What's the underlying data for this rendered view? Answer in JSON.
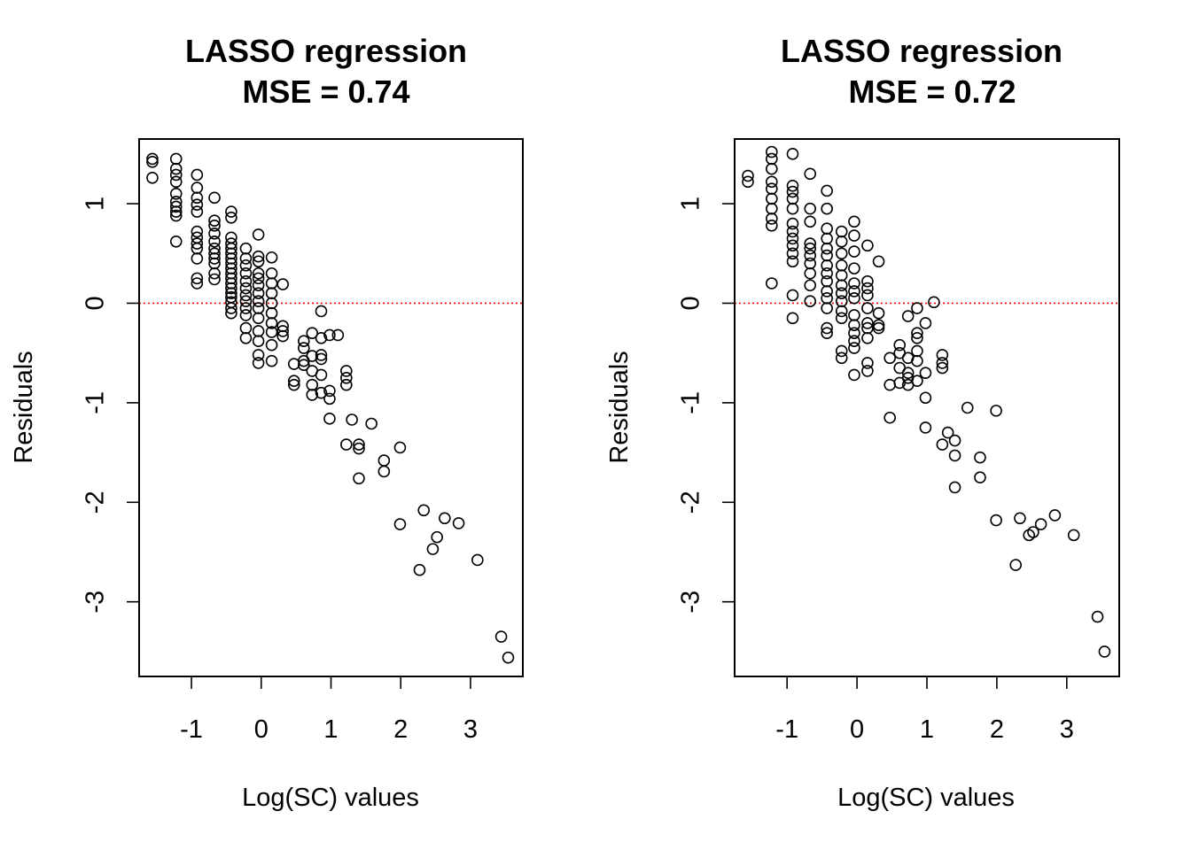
{
  "chart_data": [
    {
      "type": "scatter",
      "title": "LASSO regression",
      "subtitle": "MSE = 0.74",
      "xlabel": "Log(SC) values",
      "ylabel": "Residuals",
      "xlim": [
        -1.75,
        3.75
      ],
      "ylim": [
        -3.75,
        1.65
      ],
      "xticks": [
        -1,
        0,
        1,
        2,
        3
      ],
      "yticks": [
        -3,
        -2,
        -1,
        0,
        1
      ],
      "xtick_labels": [
        "-1",
        "0",
        "1",
        "2",
        "3"
      ],
      "ytick_labels": [
        "-3",
        "-2",
        "-1",
        "0",
        "1"
      ],
      "reference_line": {
        "y": 0,
        "style": "dotted",
        "color": "#ff0000"
      },
      "point_style": {
        "shape": "open-circle",
        "color": "#000000"
      },
      "grid": false,
      "legend": "none",
      "points": [
        [
          -1.56,
          1.45
        ],
        [
          -1.56,
          1.42
        ],
        [
          -1.56,
          1.26
        ],
        [
          -1.22,
          1.45
        ],
        [
          -1.22,
          1.35
        ],
        [
          -1.22,
          1.29
        ],
        [
          -1.22,
          1.22
        ],
        [
          -1.22,
          1.1
        ],
        [
          -1.22,
          1.02
        ],
        [
          -1.22,
          0.97
        ],
        [
          -1.22,
          0.92
        ],
        [
          -1.22,
          0.88
        ],
        [
          -1.22,
          0.62
        ],
        [
          -0.92,
          1.29
        ],
        [
          -0.92,
          1.16
        ],
        [
          -0.92,
          1.06
        ],
        [
          -0.92,
          0.99
        ],
        [
          -0.92,
          0.92
        ],
        [
          -0.92,
          0.72
        ],
        [
          -0.92,
          0.66
        ],
        [
          -0.92,
          0.6
        ],
        [
          -0.92,
          0.55
        ],
        [
          -0.92,
          0.45
        ],
        [
          -0.92,
          0.25
        ],
        [
          -0.92,
          0.2
        ],
        [
          -0.67,
          1.06
        ],
        [
          -0.67,
          0.83
        ],
        [
          -0.67,
          0.78
        ],
        [
          -0.67,
          0.7
        ],
        [
          -0.67,
          0.62
        ],
        [
          -0.67,
          0.55
        ],
        [
          -0.67,
          0.5
        ],
        [
          -0.67,
          0.45
        ],
        [
          -0.67,
          0.4
        ],
        [
          -0.67,
          0.3
        ],
        [
          -0.67,
          0.24
        ],
        [
          -0.43,
          0.92
        ],
        [
          -0.43,
          0.86
        ],
        [
          -0.43,
          0.66
        ],
        [
          -0.43,
          0.6
        ],
        [
          -0.43,
          0.55
        ],
        [
          -0.43,
          0.5
        ],
        [
          -0.43,
          0.45
        ],
        [
          -0.43,
          0.4
        ],
        [
          -0.43,
          0.35
        ],
        [
          -0.43,
          0.3
        ],
        [
          -0.43,
          0.25
        ],
        [
          -0.43,
          0.2
        ],
        [
          -0.43,
          0.15
        ],
        [
          -0.43,
          0.1
        ],
        [
          -0.43,
          0.06
        ],
        [
          -0.43,
          0.01
        ],
        [
          -0.43,
          -0.05
        ],
        [
          -0.43,
          -0.1
        ],
        [
          -0.22,
          0.55
        ],
        [
          -0.22,
          0.45
        ],
        [
          -0.22,
          0.38
        ],
        [
          -0.22,
          0.3
        ],
        [
          -0.22,
          0.22
        ],
        [
          -0.22,
          0.15
        ],
        [
          -0.22,
          0.08
        ],
        [
          -0.22,
          0.02
        ],
        [
          -0.22,
          -0.05
        ],
        [
          -0.22,
          -0.12
        ],
        [
          -0.22,
          -0.25
        ],
        [
          -0.22,
          -0.35
        ],
        [
          -0.04,
          0.69
        ],
        [
          -0.04,
          0.47
        ],
        [
          -0.04,
          0.42
        ],
        [
          -0.04,
          0.3
        ],
        [
          -0.04,
          0.25
        ],
        [
          -0.04,
          0.18
        ],
        [
          -0.04,
          0.1
        ],
        [
          -0.04,
          0.02
        ],
        [
          -0.04,
          -0.05
        ],
        [
          -0.04,
          -0.15
        ],
        [
          -0.04,
          -0.28
        ],
        [
          -0.04,
          -0.38
        ],
        [
          -0.04,
          -0.52
        ],
        [
          -0.04,
          -0.6
        ],
        [
          0.15,
          0.46
        ],
        [
          0.15,
          0.3
        ],
        [
          0.15,
          0.2
        ],
        [
          0.15,
          0.1
        ],
        [
          0.15,
          0.0
        ],
        [
          0.15,
          -0.1
        ],
        [
          0.15,
          -0.2
        ],
        [
          0.15,
          -0.29
        ],
        [
          0.15,
          -0.42
        ],
        [
          0.15,
          -0.58
        ],
        [
          0.31,
          0.19
        ],
        [
          0.31,
          -0.23
        ],
        [
          0.31,
          -0.28
        ],
        [
          0.31,
          -0.33
        ],
        [
          0.47,
          -0.61
        ],
        [
          0.47,
          -0.78
        ],
        [
          0.47,
          -0.82
        ],
        [
          0.61,
          -0.38
        ],
        [
          0.61,
          -0.45
        ],
        [
          0.61,
          -0.58
        ],
        [
          0.61,
          -0.62
        ],
        [
          0.73,
          -0.3
        ],
        [
          0.73,
          -0.53
        ],
        [
          0.73,
          -0.68
        ],
        [
          0.73,
          -0.82
        ],
        [
          0.73,
          -0.92
        ],
        [
          0.86,
          -0.08
        ],
        [
          0.86,
          -0.35
        ],
        [
          0.86,
          -0.52
        ],
        [
          0.86,
          -0.56
        ],
        [
          0.86,
          -0.72
        ],
        [
          0.86,
          -0.9
        ],
        [
          0.98,
          -0.32
        ],
        [
          0.98,
          -0.88
        ],
        [
          0.98,
          -0.96
        ],
        [
          0.98,
          -1.16
        ],
        [
          1.1,
          -0.32
        ],
        [
          1.22,
          -0.68
        ],
        [
          1.22,
          -0.75
        ],
        [
          1.22,
          -0.82
        ],
        [
          1.22,
          -1.42
        ],
        [
          1.3,
          -1.17
        ],
        [
          1.4,
          -1.42
        ],
        [
          1.4,
          -1.46
        ],
        [
          1.4,
          -1.76
        ],
        [
          1.58,
          -1.21
        ],
        [
          1.76,
          -1.58
        ],
        [
          1.76,
          -1.69
        ],
        [
          1.99,
          -1.45
        ],
        [
          1.99,
          -2.22
        ],
        [
          2.27,
          -2.68
        ],
        [
          2.33,
          -2.08
        ],
        [
          2.46,
          -2.47
        ],
        [
          2.52,
          -2.35
        ],
        [
          2.63,
          -2.16
        ],
        [
          2.83,
          -2.21
        ],
        [
          3.1,
          -2.58
        ],
        [
          3.44,
          -3.35
        ],
        [
          3.54,
          -3.56
        ]
      ]
    },
    {
      "type": "scatter",
      "title": "LASSO regression",
      "subtitle": "MSE = 0.72",
      "xlabel": "Log(SC) values",
      "ylabel": "Residuals",
      "xlim": [
        -1.75,
        3.75
      ],
      "ylim": [
        -3.75,
        1.65
      ],
      "xticks": [
        -1,
        0,
        1,
        2,
        3
      ],
      "yticks": [
        -3,
        -2,
        -1,
        0,
        1
      ],
      "xtick_labels": [
        "-1",
        "0",
        "1",
        "2",
        "3"
      ],
      "ytick_labels": [
        "-3",
        "-2",
        "-1",
        "0",
        "1"
      ],
      "reference_line": {
        "y": 0,
        "style": "dotted",
        "color": "#ff0000"
      },
      "point_style": {
        "shape": "open-circle",
        "color": "#000000"
      },
      "grid": false,
      "legend": "none",
      "points": [
        [
          -1.56,
          1.28
        ],
        [
          -1.56,
          1.22
        ],
        [
          -1.22,
          1.52
        ],
        [
          -1.22,
          1.45
        ],
        [
          -1.22,
          1.35
        ],
        [
          -1.22,
          1.22
        ],
        [
          -1.22,
          1.15
        ],
        [
          -1.22,
          1.05
        ],
        [
          -1.22,
          0.95
        ],
        [
          -1.22,
          0.85
        ],
        [
          -1.22,
          0.78
        ],
        [
          -1.22,
          0.2
        ],
        [
          -0.92,
          1.5
        ],
        [
          -0.92,
          1.18
        ],
        [
          -0.92,
          1.12
        ],
        [
          -0.92,
          1.05
        ],
        [
          -0.92,
          0.95
        ],
        [
          -0.92,
          0.8
        ],
        [
          -0.92,
          0.72
        ],
        [
          -0.92,
          0.65
        ],
        [
          -0.92,
          0.58
        ],
        [
          -0.92,
          0.5
        ],
        [
          -0.92,
          0.42
        ],
        [
          -0.92,
          0.08
        ],
        [
          -0.92,
          -0.15
        ],
        [
          -0.67,
          1.3
        ],
        [
          -0.67,
          0.95
        ],
        [
          -0.67,
          0.82
        ],
        [
          -0.67,
          0.6
        ],
        [
          -0.67,
          0.55
        ],
        [
          -0.67,
          0.48
        ],
        [
          -0.67,
          0.4
        ],
        [
          -0.67,
          0.3
        ],
        [
          -0.67,
          0.18
        ],
        [
          -0.67,
          0.02
        ],
        [
          -0.43,
          1.13
        ],
        [
          -0.43,
          0.95
        ],
        [
          -0.43,
          0.75
        ],
        [
          -0.43,
          0.65
        ],
        [
          -0.43,
          0.55
        ],
        [
          -0.43,
          0.48
        ],
        [
          -0.43,
          0.38
        ],
        [
          -0.43,
          0.3
        ],
        [
          -0.43,
          0.22
        ],
        [
          -0.43,
          0.12
        ],
        [
          -0.43,
          0.05
        ],
        [
          -0.43,
          -0.05
        ],
        [
          -0.43,
          -0.25
        ],
        [
          -0.43,
          -0.3
        ],
        [
          -0.22,
          0.72
        ],
        [
          -0.22,
          0.62
        ],
        [
          -0.22,
          0.5
        ],
        [
          -0.22,
          0.38
        ],
        [
          -0.22,
          0.28
        ],
        [
          -0.22,
          0.18
        ],
        [
          -0.22,
          0.1
        ],
        [
          -0.22,
          0.02
        ],
        [
          -0.22,
          -0.08
        ],
        [
          -0.22,
          -0.15
        ],
        [
          -0.22,
          -0.48
        ],
        [
          -0.22,
          -0.55
        ],
        [
          -0.04,
          0.82
        ],
        [
          -0.04,
          0.68
        ],
        [
          -0.04,
          0.52
        ],
        [
          -0.04,
          0.35
        ],
        [
          -0.04,
          0.2
        ],
        [
          -0.04,
          0.12
        ],
        [
          -0.04,
          0.05
        ],
        [
          -0.04,
          -0.12
        ],
        [
          -0.04,
          -0.22
        ],
        [
          -0.04,
          -0.3
        ],
        [
          -0.04,
          -0.38
        ],
        [
          -0.04,
          -0.45
        ],
        [
          -0.04,
          -0.72
        ],
        [
          0.15,
          0.58
        ],
        [
          0.15,
          0.22
        ],
        [
          0.15,
          0.15
        ],
        [
          0.15,
          0.08
        ],
        [
          0.15,
          -0.05
        ],
        [
          0.15,
          -0.2
        ],
        [
          0.15,
          -0.25
        ],
        [
          0.15,
          -0.35
        ],
        [
          0.15,
          -0.6
        ],
        [
          0.15,
          -0.68
        ],
        [
          0.31,
          0.42
        ],
        [
          0.31,
          -0.1
        ],
        [
          0.31,
          -0.22
        ],
        [
          0.31,
          -0.25
        ],
        [
          0.47,
          -0.55
        ],
        [
          0.47,
          -0.82
        ],
        [
          0.47,
          -1.15
        ],
        [
          0.61,
          -0.42
        ],
        [
          0.61,
          -0.5
        ],
        [
          0.61,
          -0.65
        ],
        [
          0.61,
          -0.8
        ],
        [
          0.73,
          -0.13
        ],
        [
          0.73,
          -0.55
        ],
        [
          0.73,
          -0.7
        ],
        [
          0.73,
          -0.75
        ],
        [
          0.73,
          -0.82
        ],
        [
          0.86,
          -0.05
        ],
        [
          0.86,
          -0.3
        ],
        [
          0.86,
          -0.35
        ],
        [
          0.86,
          -0.48
        ],
        [
          0.86,
          -0.58
        ],
        [
          0.86,
          -0.78
        ],
        [
          0.98,
          -0.2
        ],
        [
          0.98,
          -0.7
        ],
        [
          0.98,
          -0.95
        ],
        [
          0.98,
          -1.25
        ],
        [
          1.1,
          0.01
        ],
        [
          1.22,
          -0.52
        ],
        [
          1.22,
          -0.6
        ],
        [
          1.22,
          -0.65
        ],
        [
          1.22,
          -1.42
        ],
        [
          1.3,
          -1.3
        ],
        [
          1.4,
          -1.38
        ],
        [
          1.4,
          -1.53
        ],
        [
          1.4,
          -1.85
        ],
        [
          1.58,
          -1.05
        ],
        [
          1.76,
          -1.55
        ],
        [
          1.76,
          -1.75
        ],
        [
          1.99,
          -1.08
        ],
        [
          1.99,
          -2.18
        ],
        [
          2.27,
          -2.63
        ],
        [
          2.33,
          -2.16
        ],
        [
          2.46,
          -2.33
        ],
        [
          2.52,
          -2.3
        ],
        [
          2.63,
          -2.22
        ],
        [
          2.83,
          -2.13
        ],
        [
          3.1,
          -2.33
        ],
        [
          3.44,
          -3.15
        ],
        [
          3.54,
          -3.5
        ]
      ]
    }
  ]
}
